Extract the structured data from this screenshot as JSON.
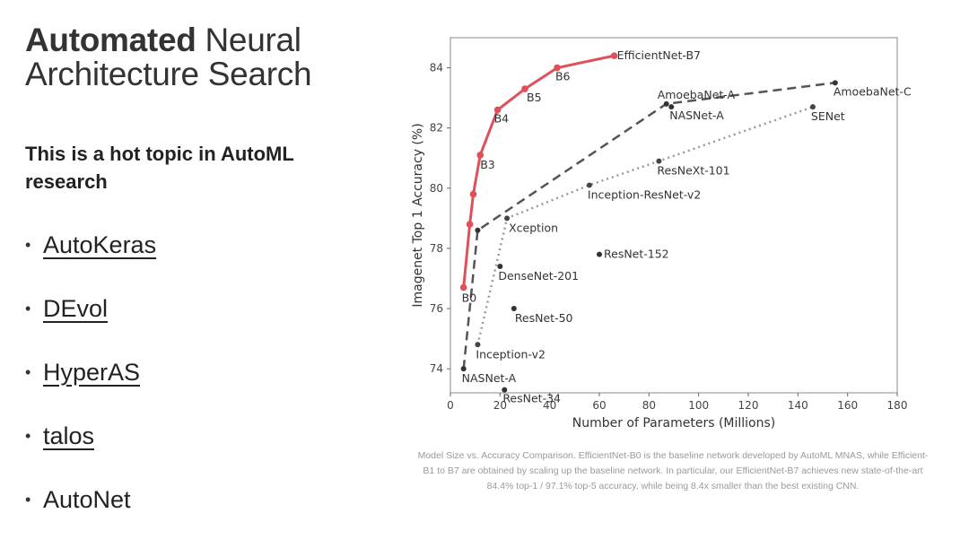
{
  "slide": {
    "title_bold": "Automated",
    "title_rest": " Neural",
    "title_line2": "Architecture Search",
    "subtitle": "This is a hot topic in AutoML research",
    "links": [
      {
        "label": "AutoKeras",
        "underlined": true
      },
      {
        "label": "DEvol",
        "underlined": true
      },
      {
        "label": "HyperAS",
        "underlined": true
      },
      {
        "label": "talos",
        "underlined": true
      },
      {
        "label": "AutoNet",
        "underlined": false
      }
    ],
    "bullet": "•",
    "caption": "Model Size vs. Accuracy Comparison. EfficientNet-B0 is the baseline network developed by AutoML MNAS, while Efficient-B1 to B7 are obtained by scaling up the baseline network. In particular, our EfficientNet-B7 achieves new state-of-the-art 84.4% top-1 / 97.1% top-5 accuracy, while being 8.4x smaller than the best existing CNN."
  },
  "chart_data": {
    "type": "scatter",
    "xlabel": "Number of Parameters (Millions)",
    "ylabel": "Imagenet Top 1 Accuracy (%)",
    "xlim": [
      0,
      180
    ],
    "ylim": [
      73.2,
      85
    ],
    "xticks": [
      0,
      20,
      40,
      60,
      80,
      100,
      120,
      140,
      160,
      180
    ],
    "yticks": [
      74,
      76,
      78,
      80,
      82,
      84
    ],
    "grid": false,
    "efficientnet": {
      "color": "#e0505a",
      "points": [
        {
          "x": 5.3,
          "y": 76.7,
          "label": "B0"
        },
        {
          "x": 7.8,
          "y": 78.8,
          "label": ""
        },
        {
          "x": 9.2,
          "y": 79.8,
          "label": ""
        },
        {
          "x": 12,
          "y": 81.1,
          "label": "B3"
        },
        {
          "x": 19,
          "y": 82.6,
          "label": "B4"
        },
        {
          "x": 30,
          "y": 83.3,
          "label": "B5"
        },
        {
          "x": 43,
          "y": 84.0,
          "label": "B6"
        },
        {
          "x": 66,
          "y": 84.4,
          "label": "EfficientNet-B7"
        }
      ]
    },
    "nas_line": {
      "style": "dashed",
      "points": [
        {
          "x": 5.3,
          "y": 74.0,
          "label": "NASNet-A"
        },
        {
          "x": 11,
          "y": 78.6,
          "label": ""
        },
        {
          "x": 87,
          "y": 82.8,
          "label": "AmoebaNet-A"
        },
        {
          "x": 155,
          "y": 83.5,
          "label": "AmoebaNet-C"
        }
      ]
    },
    "manual_line": {
      "style": "dotted",
      "points": [
        {
          "x": 11,
          "y": 74.8,
          "label": "Inception-v2"
        },
        {
          "x": 22.8,
          "y": 79.0,
          "label": "Xception"
        },
        {
          "x": 56,
          "y": 80.1,
          "label": "Inception-ResNet-v2"
        },
        {
          "x": 84,
          "y": 80.9,
          "label": "ResNeXt-101"
        },
        {
          "x": 146,
          "y": 82.7,
          "label": "SENet"
        }
      ]
    },
    "standalone_points": [
      {
        "x": 89,
        "y": 82.7,
        "label": "NASNet-A"
      },
      {
        "x": 20,
        "y": 77.4,
        "label": "DenseNet-201"
      },
      {
        "x": 60,
        "y": 77.8,
        "label": "ResNet-152"
      },
      {
        "x": 25.6,
        "y": 76.0,
        "label": "ResNet-50"
      },
      {
        "x": 21.8,
        "y": 73.3,
        "label": "ResNet-34"
      }
    ]
  }
}
